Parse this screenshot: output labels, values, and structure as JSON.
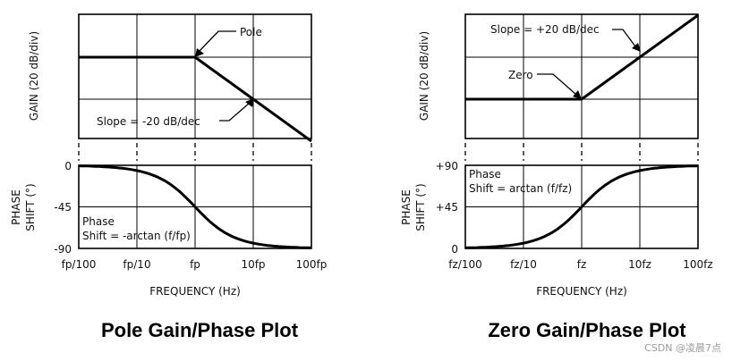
{
  "panels": [
    {
      "gain_axis_label": "GAIN (20 dB/div)",
      "phase_axis_label": "PHASE SHIFT (°)",
      "phase_axis_line1": "PHASE",
      "phase_axis_line2": "SHIFT (°)",
      "phase_ticks": [
        "0",
        "-45",
        "-90"
      ],
      "freq_ticks": [
        "fp/100",
        "fp/10",
        "fp",
        "10fp",
        "100fp"
      ],
      "freq_axis_label": "FREQUENCY (Hz)",
      "annot_point": "Pole",
      "annot_slope": "Slope = -20 dB/dec",
      "phase_text_line1": "Phase",
      "phase_text_line2": "Shift = -arctan (f/fp)",
      "title": "Pole Gain/Phase Plot"
    },
    {
      "gain_axis_label": "GAIN (20 dB/div)",
      "phase_axis_label": "PHASE SHIFT (°)",
      "phase_axis_line1": "PHASE",
      "phase_axis_line2": "SHIFT (°)",
      "phase_ticks": [
        "+90",
        "+45",
        "0"
      ],
      "freq_ticks": [
        "fz/100",
        "fz/10",
        "fz",
        "10fz",
        "100fz"
      ],
      "freq_axis_label": "FREQUENCY (Hz)",
      "annot_point": "Zero",
      "annot_slope": "Slope = +20 dB/dec",
      "phase_text_line1": "Phase",
      "phase_text_line2": "Shift = arctan (f/fz)",
      "title": "Zero Gain/Phase Plot"
    }
  ],
  "watermark": "CSDN @凌晨7点",
  "chart_data": [
    {
      "type": "line",
      "x": [
        0.01,
        0.1,
        1,
        10,
        100
      ],
      "gain_series": {
        "values_db": [
          0,
          0,
          0,
          -20,
          -40
        ]
      },
      "phase_series": {
        "values_deg": [
          -0.6,
          -5.7,
          -45,
          -84.3,
          -89.4
        ]
      },
      "ylim_phase": [
        -90,
        0
      ]
    },
    {
      "type": "line",
      "x": [
        0.01,
        0.1,
        1,
        10,
        100
      ],
      "gain_series": {
        "values_db": [
          0,
          0,
          0,
          20,
          40
        ]
      },
      "phase_series": {
        "values_deg": [
          0.6,
          5.7,
          45,
          84.3,
          89.4
        ]
      },
      "ylim_phase": [
        0,
        90
      ]
    }
  ]
}
